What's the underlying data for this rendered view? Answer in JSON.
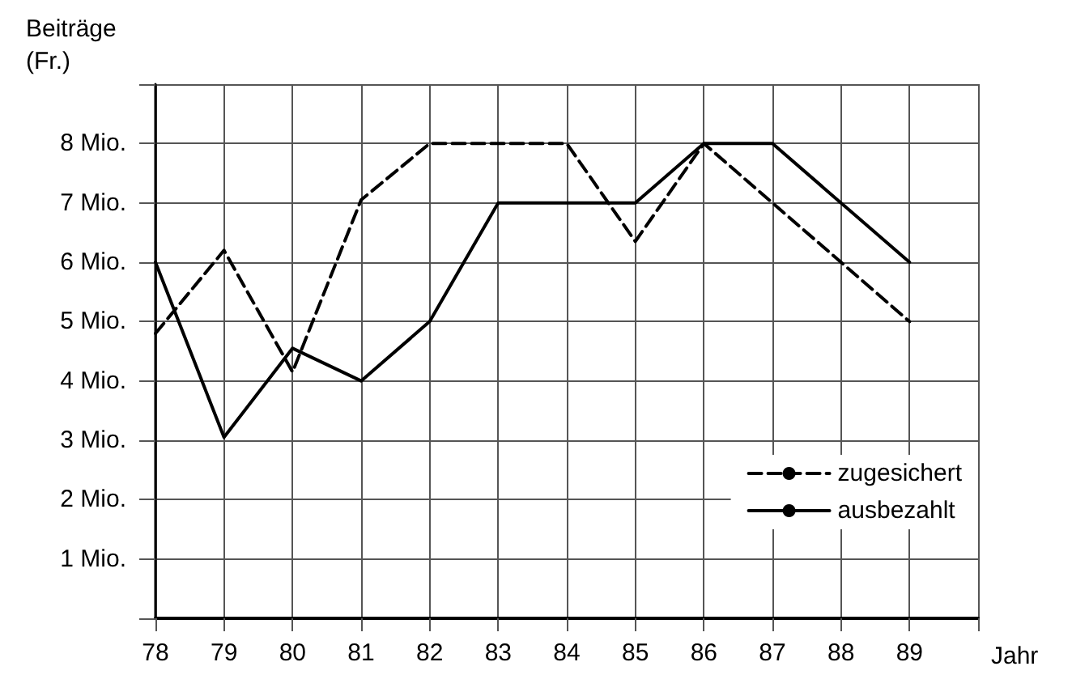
{
  "chart_data": {
    "type": "line",
    "ylabel": "Beiträge\n(Fr.)",
    "xlabel": "Jahr",
    "x": [
      78,
      79,
      80,
      81,
      82,
      83,
      84,
      85,
      86,
      87,
      88,
      89
    ],
    "series": [
      {
        "name": "zugesichert",
        "color": "#000000",
        "line_style": "dashed",
        "values": [
          4.8,
          6.2,
          4.15,
          7.05,
          8,
          8,
          8,
          6.35,
          8,
          7,
          6,
          5
        ]
      },
      {
        "name": "ausbezahlt",
        "color": "#000000",
        "line_style": "solid",
        "values": [
          6,
          3.05,
          4.55,
          4,
          5,
          7,
          7,
          7,
          8,
          8,
          7,
          6
        ]
      }
    ],
    "xlim": [
      78,
      90
    ],
    "xticks": [
      78,
      79,
      80,
      81,
      82,
      83,
      84,
      85,
      86,
      87,
      88,
      89,
      {
        "value": 90,
        "label": null
      }
    ],
    "ylim": [
      0,
      9
    ],
    "yticks": [
      {
        "value": 0,
        "label": null
      },
      {
        "value": 1,
        "label": "1 Mio."
      },
      {
        "value": 2,
        "label": "2 Mio."
      },
      {
        "value": 3,
        "label": "3 Mio."
      },
      {
        "value": 4,
        "label": "4 Mio."
      },
      {
        "value": 5,
        "label": "5 Mio."
      },
      {
        "value": 6,
        "label": "6 Mio."
      },
      {
        "value": 7,
        "label": "7 Mio."
      },
      {
        "value": 8,
        "label": "8 Mio."
      },
      {
        "value": 9,
        "label": null
      }
    ],
    "grid": true,
    "legend": "bottom right",
    "marker": "none"
  }
}
